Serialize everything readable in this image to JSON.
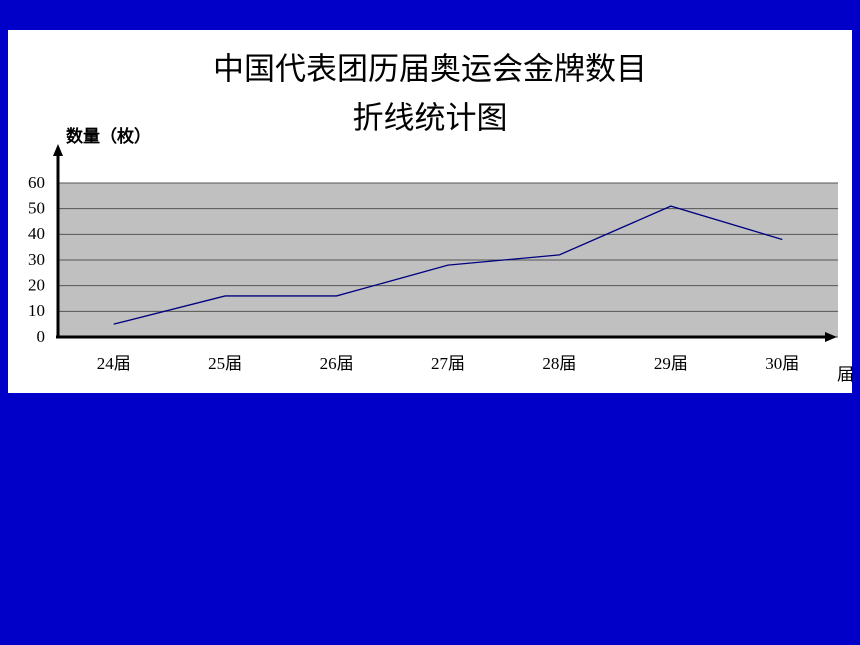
{
  "chart_data": {
    "type": "line",
    "title": "中国代表团历届奥运会金牌数目",
    "subtitle": "折线统计图",
    "y_label": "数量（枚）",
    "x_label": "届",
    "categories": [
      "24届",
      "25届",
      "26届",
      "27届",
      "28届",
      "29届",
      "30届"
    ],
    "values": [
      5,
      16,
      16,
      28,
      32,
      51,
      38
    ],
    "color": "#000080",
    "ylim": [
      0,
      60
    ],
    "yticks": [
      0,
      10,
      20,
      30,
      40,
      50,
      60
    ],
    "grid": true
  }
}
